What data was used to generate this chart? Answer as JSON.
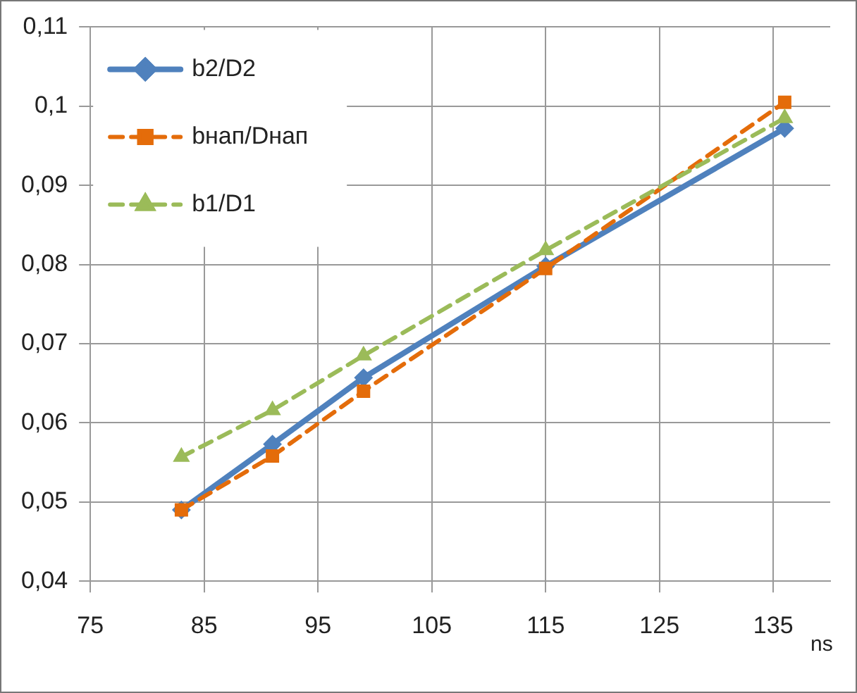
{
  "chart_data": {
    "type": "line",
    "xlabel": "ns",
    "xlim": [
      75,
      140
    ],
    "xticks": [
      75,
      85,
      95,
      105,
      115,
      125,
      135
    ],
    "ylim": [
      0.04,
      0.11
    ],
    "yticks": [
      {
        "value": 0.04,
        "label": "0,04"
      },
      {
        "value": 0.05,
        "label": "0,05"
      },
      {
        "value": 0.06,
        "label": "0,06"
      },
      {
        "value": 0.07,
        "label": "0,07"
      },
      {
        "value": 0.08,
        "label": "0,08"
      },
      {
        "value": 0.09,
        "label": "0,09"
      },
      {
        "value": 0.1,
        "label": "0,1"
      },
      {
        "value": 0.11,
        "label": "0,11"
      }
    ],
    "grid": true,
    "legend": "top left",
    "series": [
      {
        "name": "b2/D2",
        "color": "#4f81bd",
        "marker": "diamond",
        "line_style": "solid",
        "x": [
          83,
          91,
          99,
          115,
          136
        ],
        "values": [
          0.049,
          0.0573,
          0.0657,
          0.0798,
          0.0972
        ]
      },
      {
        "name": "bнап/Dнап",
        "color": "#e46c0a",
        "marker": "square",
        "line_style": "dashed",
        "x": [
          83,
          91,
          99,
          115,
          136
        ],
        "values": [
          0.049,
          0.0558,
          0.064,
          0.0795,
          0.1005
        ]
      },
      {
        "name": "b1/D1",
        "color": "#9bbb59",
        "marker": "triangle",
        "line_style": "dashed",
        "x": [
          83,
          91,
          99,
          115,
          136
        ],
        "values": [
          0.0557,
          0.0616,
          0.0685,
          0.0818,
          0.0985
        ]
      }
    ]
  }
}
